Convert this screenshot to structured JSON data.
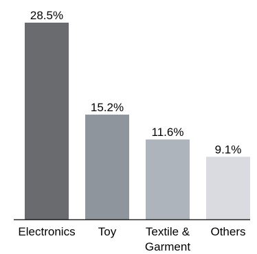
{
  "chart_data": {
    "type": "bar",
    "categories": [
      "Electronics",
      "Toy",
      "Textile & Garment",
      "Others"
    ],
    "category_lines": [
      [
        "Electronics"
      ],
      [
        "Toy"
      ],
      [
        "Textile &",
        "Garment"
      ],
      [
        "Others"
      ]
    ],
    "values": [
      28.5,
      15.2,
      11.6,
      9.1
    ],
    "value_labels": [
      "28.5%",
      "15.2%",
      "11.6%",
      "9.1%"
    ],
    "bar_colors": [
      "#6a6b6e",
      "#8f959c",
      "#adb4bc",
      "#d9dbe0"
    ],
    "axis_color": "#000000",
    "ylim": [
      0,
      28.5
    ],
    "grid": false,
    "title": "",
    "xlabel": "",
    "ylabel": ""
  }
}
